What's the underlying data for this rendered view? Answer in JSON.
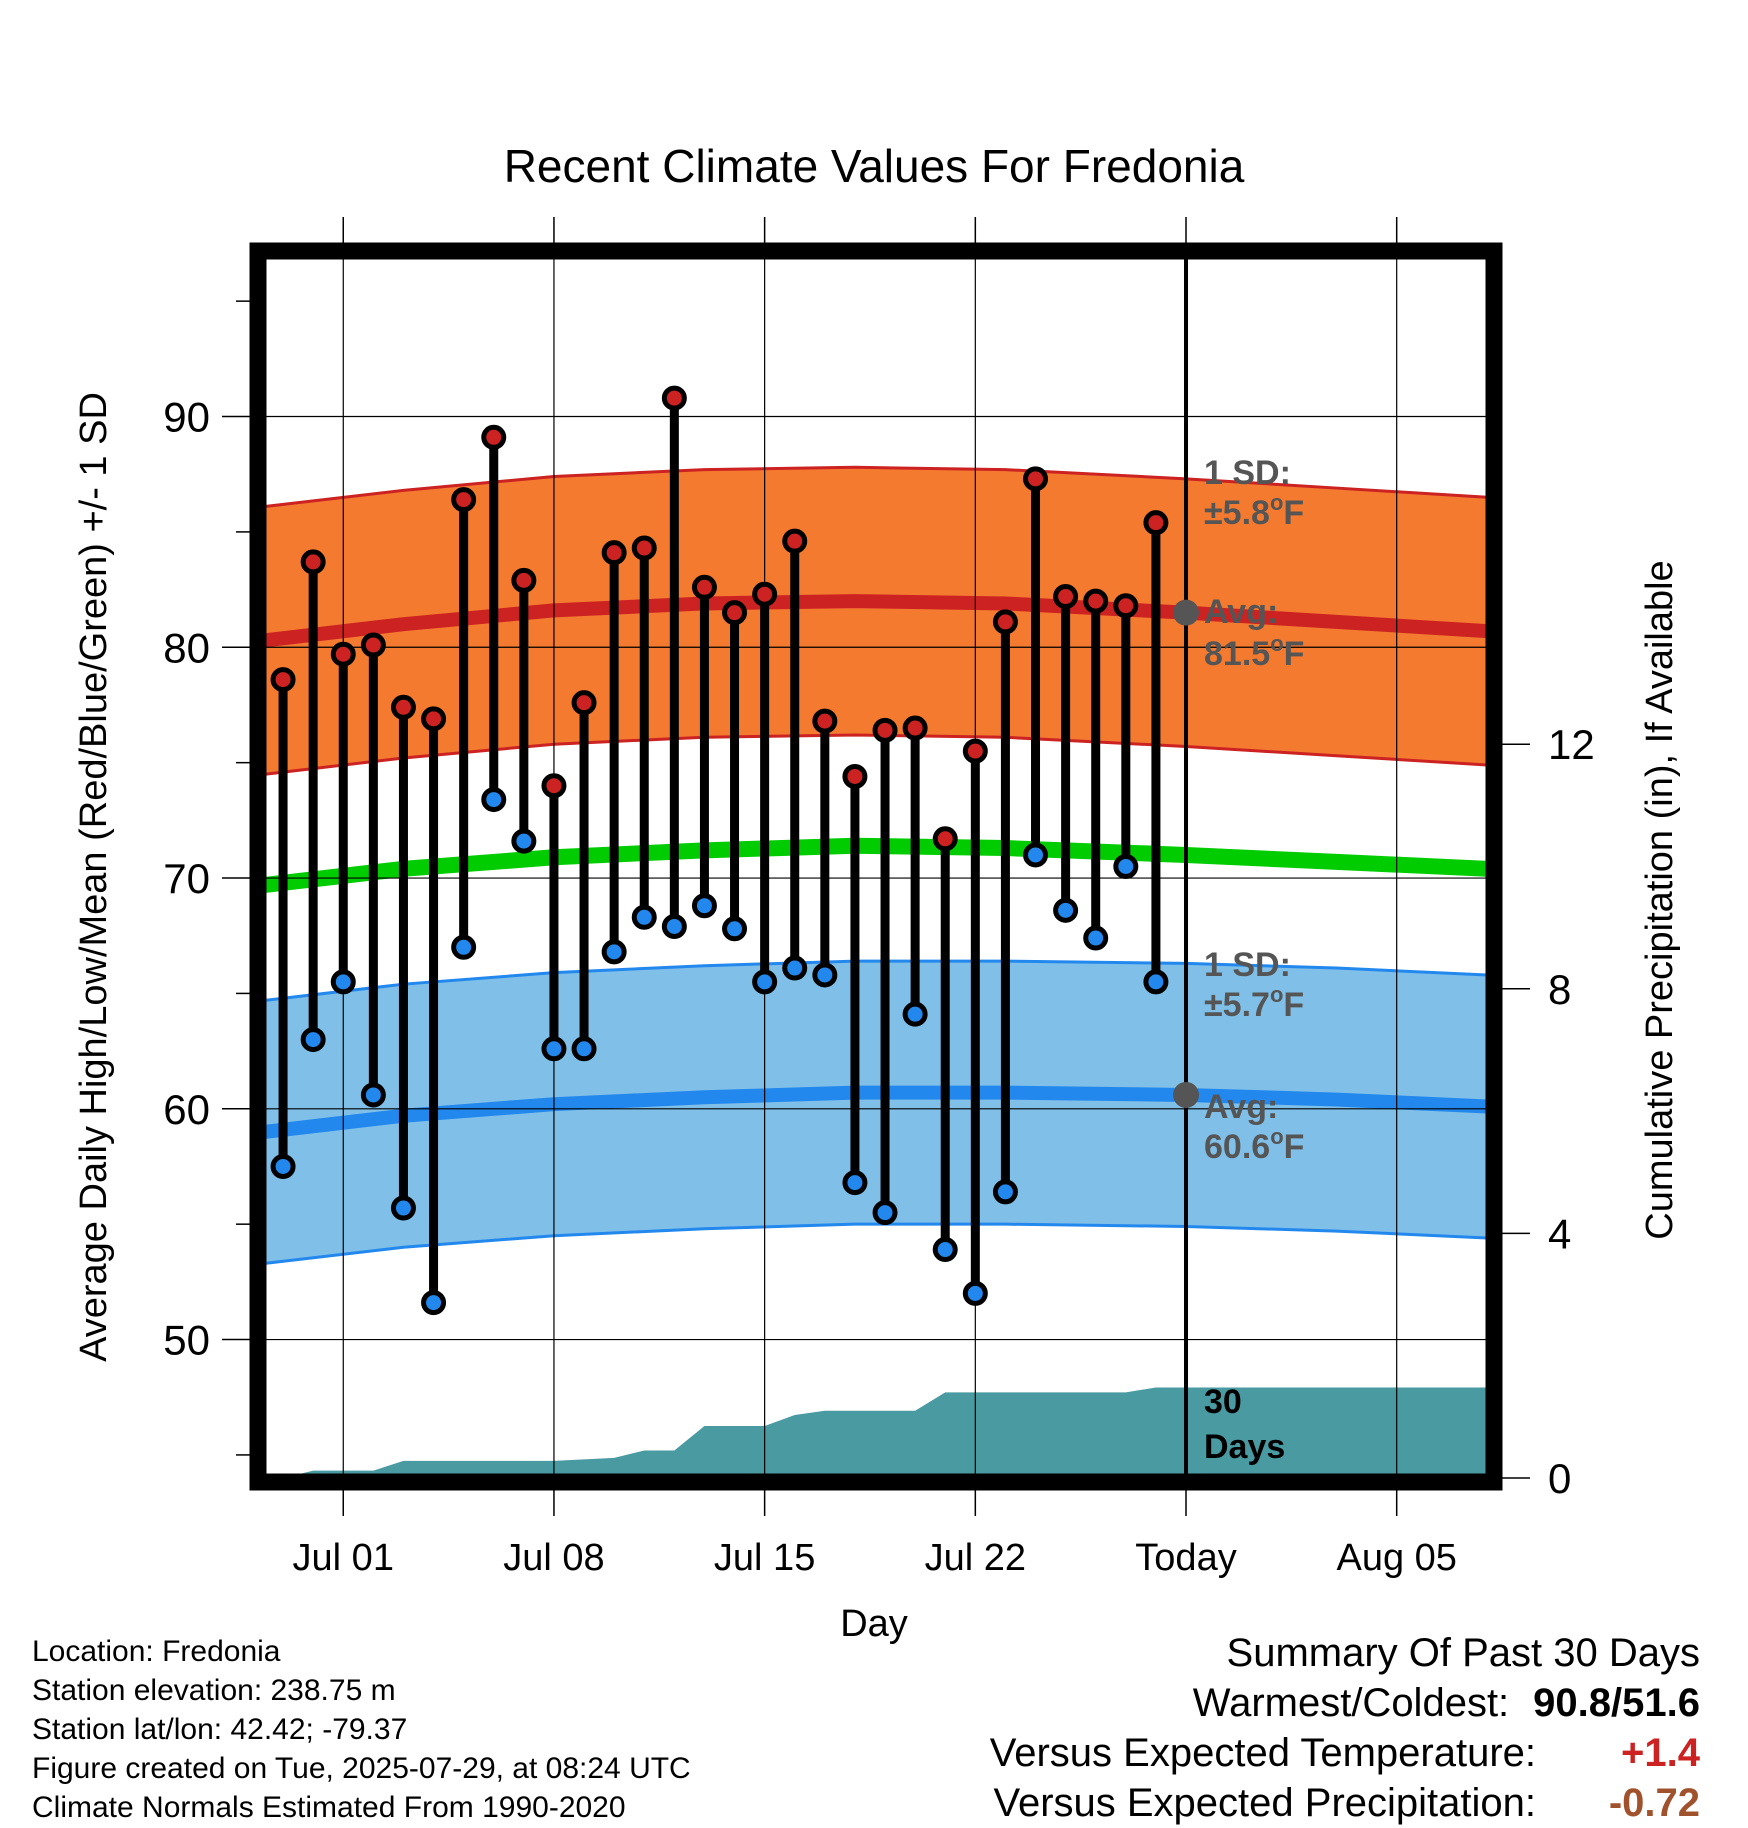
{
  "chart_data": {
    "type": "line",
    "title": "Recent Climate Values For Fredonia",
    "xlabel": "Day",
    "ylabel": "Average Daily High/Low/Mean (Red/Blue/Green) +/- 1 SD",
    "y2label": "Cumulative Precipitation (in), If Available",
    "ylim": [
      44,
      97
    ],
    "y2lim": [
      0,
      20
    ],
    "x_ticks": [
      {
        "day": 0,
        "label": "Jul 01"
      },
      {
        "day": 7,
        "label": "Jul 08"
      },
      {
        "day": 14,
        "label": "Jul 15"
      },
      {
        "day": 21,
        "label": "Jul 22"
      },
      {
        "day": 28,
        "label": "Today"
      },
      {
        "day": 35,
        "label": "Aug 05"
      }
    ],
    "y_ticks": [
      50,
      60,
      70,
      80,
      90
    ],
    "y2_ticks": [
      0,
      4,
      8,
      12
    ],
    "xlim": [
      -2.7,
      38.1
    ],
    "today_day": 28,
    "grid": true,
    "days": [
      -2,
      -1,
      0,
      1,
      2,
      3,
      4,
      5,
      6,
      7,
      8,
      9,
      10,
      11,
      12,
      13,
      14,
      15,
      16,
      17,
      18,
      19,
      20,
      21,
      22,
      23,
      24,
      25,
      26,
      27
    ],
    "series": [
      {
        "name": "High",
        "color": "#cc2222",
        "values": [
          78.6,
          83.7,
          79.7,
          80.1,
          77.4,
          76.9,
          86.4,
          89.1,
          82.9,
          74.0,
          77.6,
          84.1,
          84.3,
          90.8,
          82.6,
          81.5,
          82.3,
          84.6,
          76.8,
          74.4,
          76.4,
          76.5,
          71.7,
          75.5,
          81.1,
          87.3,
          82.2,
          82.0,
          81.8,
          85.4
        ]
      },
      {
        "name": "Low",
        "color": "#2288ee",
        "values": [
          57.5,
          63.0,
          65.5,
          60.6,
          55.7,
          51.6,
          67.0,
          73.4,
          71.6,
          62.6,
          62.6,
          66.8,
          68.3,
          67.9,
          68.8,
          67.8,
          65.5,
          66.1,
          65.8,
          56.8,
          55.5,
          64.1,
          53.9,
          52.0,
          56.4,
          71.0,
          68.6,
          67.4,
          70.5,
          65.5
        ]
      }
    ],
    "normals": {
      "days": [
        -2.6,
        2,
        7,
        12,
        17,
        22,
        28,
        33,
        38
      ],
      "high_avg": [
        80.3,
        81.0,
        81.6,
        81.9,
        82.0,
        81.9,
        81.5,
        81.1,
        80.7
      ],
      "low_avg": [
        59.0,
        59.7,
        60.2,
        60.5,
        60.7,
        60.7,
        60.6,
        60.4,
        60.1
      ],
      "mean_avg": [
        69.7,
        70.4,
        70.9,
        71.2,
        71.4,
        71.3,
        71.0,
        70.7,
        70.4
      ],
      "high_sd": 5.8,
      "low_sd": 5.7,
      "high_color": "#f47a30",
      "high_line_color": "#cc2222",
      "low_color": "#80c0e8",
      "low_line_color": "#2288ee",
      "mean_color": "#00cc00"
    },
    "precip": {
      "color": "#4a9aa2",
      "days": [
        -2,
        -1,
        1,
        2,
        7,
        9,
        10,
        11,
        12,
        14,
        15,
        16,
        19,
        20,
        26,
        27,
        38
      ],
      "values": [
        0.0,
        0.12,
        0.12,
        0.28,
        0.28,
        0.33,
        0.45,
        0.45,
        0.85,
        0.85,
        1.03,
        1.1,
        1.1,
        1.4,
        1.4,
        1.48,
        1.48
      ]
    },
    "annotations": {
      "high_sd_label": "1 SD:",
      "high_sd_value": "±5.8",
      "high_avg_label": "Avg:",
      "high_avg_value": "81.5",
      "low_sd_label": "1 SD:",
      "low_sd_value": "±5.7",
      "low_avg_label": "Avg:",
      "low_avg_value": "60.6",
      "unit_sup": "o",
      "unit": "F",
      "window_label_1": "30",
      "window_label_2": "Days"
    }
  },
  "footer": {
    "location": "Location: Fredonia",
    "elevation": "Station elevation: 238.75 m",
    "latlon": "Station lat/lon: 42.42; -79.37",
    "created": "Figure created on Tue, 2025-07-29, at 08:24 UTC",
    "normals": "Climate Normals Estimated From 1990-2020"
  },
  "summary": {
    "title": "Summary Of Past 30 Days",
    "warm_cold_label": "Warmest/Coldest:",
    "warm_cold_value": "90.8/51.6",
    "temp_label": "Versus Expected Temperature:",
    "temp_value": "+1.4",
    "temp_color": "#cc2222",
    "precip_label": "Versus Expected Precipitation:",
    "precip_value": "-0.72",
    "precip_color": "#a0522d"
  }
}
